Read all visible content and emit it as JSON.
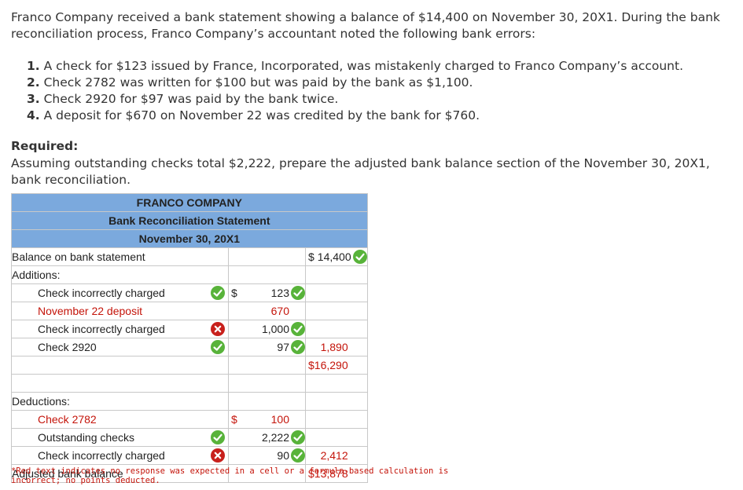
{
  "intro": "Franco Company received a bank statement showing a balance of $14,400 on November 30, 20X1. During the bank reconciliation process, Franco Company’s accountant noted the following bank errors:",
  "errors": [
    {
      "num": "1.",
      "text": " A check for $123 issued by France, Incorporated, was mistakenly charged to Franco Company’s account."
    },
    {
      "num": "2.",
      "text": " Check 2782 was written for $100 but was paid by the bank as $1,100."
    },
    {
      "num": "3.",
      "text": " Check 2920 for $97 was paid by the bank twice."
    },
    {
      "num": "4.",
      "text": " A deposit for $670 on November 22 was credited by the bank for $760."
    }
  ],
  "required": {
    "title": "Required:",
    "text": "Assuming outstanding checks total $2,222, prepare the adjusted bank balance section of the November 30, 20X1, bank reconciliation."
  },
  "statement": {
    "header": [
      "FRANCO COMPANY",
      "Bank Reconciliation Statement",
      "November 30, 20X1"
    ],
    "balance_label": "Balance on bank statement",
    "balance_dollar": "$",
    "balance_value": "14,400",
    "additions_label": "Additions:",
    "additions": [
      {
        "label": "Check incorrectly charged",
        "dollar": "$",
        "amount": "123",
        "label_color": "normal",
        "mark": "correct",
        "amount_mark": "correct"
      },
      {
        "label": "November 22 deposit",
        "dollar": "",
        "amount": "670",
        "label_color": "red",
        "mark": "",
        "amount_mark": ""
      },
      {
        "label": "Check incorrectly charged",
        "dollar": "",
        "amount": "1,000",
        "label_color": "normal",
        "mark": "incorrect",
        "amount_mark": "correct"
      },
      {
        "label": "Check 2920",
        "dollar": "",
        "amount": "97",
        "label_color": "normal",
        "mark": "correct",
        "amount_mark": "correct"
      }
    ],
    "additions_total": "1,890",
    "subtotal_dollar": "$",
    "subtotal": "16,290",
    "deductions_label": "Deductions:",
    "deductions": [
      {
        "label": "Check 2782",
        "dollar": "$",
        "amount": "100",
        "label_color": "red",
        "mark": "",
        "amount_mark": ""
      },
      {
        "label": "Outstanding checks",
        "dollar": "",
        "amount": "2,222",
        "label_color": "normal",
        "mark": "correct",
        "amount_mark": "correct"
      },
      {
        "label": "Check incorrectly charged",
        "dollar": "",
        "amount": "90",
        "label_color": "normal",
        "mark": "incorrect",
        "amount_mark": "correct"
      }
    ],
    "deductions_total": "2,412",
    "adjusted_label": "Adjusted bank balance",
    "adjusted_dollar": "$",
    "adjusted_value": "13,878"
  },
  "footnote": "*Red text indicates no response was expected in a cell or a formula-based calculation is incorrect; no points deducted.",
  "colors": {
    "header_bg": "#7ba9dd",
    "correct": "#58b33a",
    "incorrect": "#c8201c",
    "red_text": "#c4140a"
  }
}
